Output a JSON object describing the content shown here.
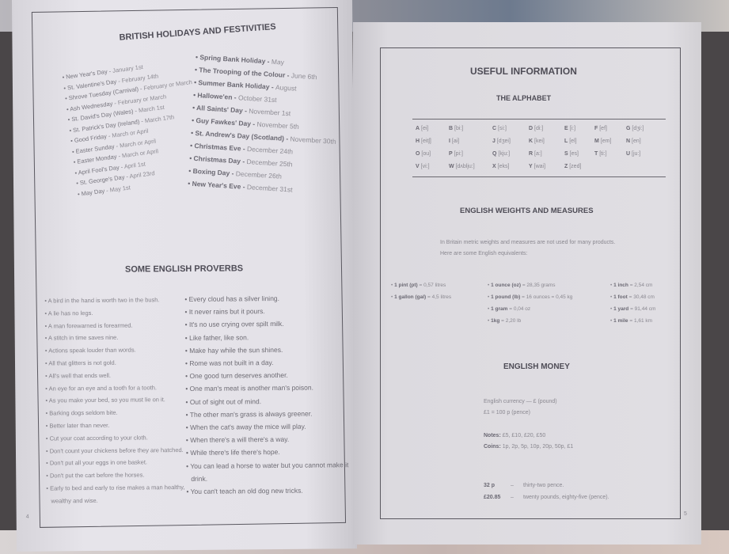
{
  "left_page": {
    "title": "BRITISH HOLIDAYS AND FESTIVITIES",
    "holidays_col1": [
      {
        "name": "New Year's Day",
        "date": "January 1st"
      },
      {
        "name": "St. Valentine's Day",
        "date": "February 14th"
      },
      {
        "name": "Shrove Tuesday (Carnival)",
        "date": "February or March"
      },
      {
        "name": "Ash Wednesday",
        "date": "February or March"
      },
      {
        "name": "St. David's Day (Wales)",
        "date": "March 1st"
      },
      {
        "name": "St. Patrick's Day (Ireland)",
        "date": "March 17th"
      },
      {
        "name": "Good Friday",
        "date": "March or April"
      },
      {
        "name": "Easter Sunday",
        "date": "March or April"
      },
      {
        "name": "Easter Monday",
        "date": "March or April"
      },
      {
        "name": "April Fool's Day",
        "date": "April 1st"
      },
      {
        "name": "St. George's Day",
        "date": "April 23rd"
      },
      {
        "name": "May Day",
        "date": "May 1st"
      }
    ],
    "holidays_col2": [
      {
        "name": "Spring Bank Holiday",
        "date": "May"
      },
      {
        "name": "The Trooping of the Colour",
        "date": "June 6th"
      },
      {
        "name": "Summer Bank Holiday",
        "date": "August"
      },
      {
        "name": "Hallowe'en",
        "date": "October 31st"
      },
      {
        "name": "All Saints' Day",
        "date": "November 1st"
      },
      {
        "name": "Guy Fawkes' Day",
        "date": "November 5th"
      },
      {
        "name": "St. Andrew's Day (Scotland)",
        "date": "November 30th"
      },
      {
        "name": "Christmas Eve",
        "date": "December 24th"
      },
      {
        "name": "Christmas Day",
        "date": "December 25th"
      },
      {
        "name": "Boxing Day",
        "date": "December 26th"
      },
      {
        "name": "New Year's Eve",
        "date": "December 31st"
      }
    ],
    "proverbs_title": "SOME ENGLISH PROVERBS",
    "proverbs_col1": [
      "A bird in the hand is worth two in the bush.",
      "A lie has no legs.",
      "A man forewarned is forearmed.",
      "A stitch in time saves nine.",
      "Actions speak louder than words.",
      "All that glitters is not gold.",
      "All's well that ends well.",
      "An eye for an eye and a tooth for a tooth.",
      "As you make your bed, so you must lie on it.",
      "Barking dogs seldom bite.",
      "Better later than never.",
      "Cut your coat according to your cloth.",
      "Don't count your chickens before they are hatched.",
      "Don't put all your eggs in one basket.",
      "Don't put the cart before the horses.",
      "Early to bed and early to rise makes a man healthy,",
      "wealthy and wise."
    ],
    "proverbs_col2": [
      "Every cloud has a silver lining.",
      "It never rains but it pours.",
      "It's no use crying over spilt milk.",
      "Like father, like son.",
      "Make hay while the sun shines.",
      "Rome was not built in a day.",
      "One good turn deserves another.",
      "One man's meat is another man's poison.",
      "Out of sight out of mind.",
      "The other man's grass is always greener.",
      "When the cat's away the mice will play.",
      "When there's a will there's a way.",
      "While there's life there's hope.",
      "You can lead a horse to water but you cannot make it",
      "drink.",
      "You can't teach an old dog new tricks."
    ],
    "page_number": "4"
  },
  "right_page": {
    "title": "USEFUL INFORMATION",
    "alphabet_title": "THE ALPHABET",
    "alphabet": [
      [
        [
          "A",
          "[ei]"
        ],
        [
          "B",
          "[bi:]"
        ],
        [
          "C",
          "[si:]"
        ],
        [
          "D",
          "[di:]"
        ],
        [
          "E",
          "[i:]"
        ],
        [
          "F",
          "[ef]"
        ],
        [
          "G",
          "[dʒi:]"
        ]
      ],
      [
        [
          "H",
          "[eitʃ]"
        ],
        [
          "I",
          "[ai]"
        ],
        [
          "J",
          "[dʒei]"
        ],
        [
          "K",
          "[kei]"
        ],
        [
          "L",
          "[el]"
        ],
        [
          "M",
          "[em]"
        ],
        [
          "N",
          "[en]"
        ]
      ],
      [
        [
          "O",
          "[ou]"
        ],
        [
          "P",
          "[pi:]"
        ],
        [
          "Q",
          "[kju:]"
        ],
        [
          "R",
          "[a:]"
        ],
        [
          "S",
          "[es]"
        ],
        [
          "T",
          "[ti:]"
        ],
        [
          "U",
          "[ju:]"
        ]
      ],
      [
        [
          "V",
          "[vi:]"
        ],
        [
          "W",
          "[dʌblju:]"
        ],
        [
          "X",
          "[eks]"
        ],
        [
          "Y",
          "[wai]"
        ],
        [
          "Z",
          "[zed]"
        ]
      ]
    ],
    "weights_title": "ENGLISH WEIGHTS AND MEASURES",
    "weights_intro": [
      "In Britain metric weights and measures are not used for many products.",
      "Here are some English equivalents:"
    ],
    "measures_col1": [
      {
        "unit": "1 pint (pt)",
        "value": "= 0,57 litres"
      },
      {
        "unit": "1 gallon (gal)",
        "value": "= 4,5 litres"
      }
    ],
    "measures_col2": [
      {
        "unit": "1 ounce (oz)",
        "value": "= 28,35 grams"
      },
      {
        "unit": "1 pound (lb)",
        "value": "= 16 ounces = 0,45 kg"
      },
      {
        "unit": "1 gram",
        "value": "= 0,04 oz"
      },
      {
        "unit": "1kg",
        "value": "= 2,20 lb"
      }
    ],
    "measures_col3": [
      {
        "unit": "1 inch",
        "value": "= 2,54 cm"
      },
      {
        "unit": "1 foot",
        "value": "= 30,48 cm"
      },
      {
        "unit": "1 yard",
        "value": "= 91,44 cm"
      },
      {
        "unit": "1 mile",
        "value": "= 1,61 km"
      }
    ],
    "money_title": "ENGLISH MONEY",
    "currency_line1": "English currency — £ (pound)",
    "currency_line2": "£1 = 100 p (pence)",
    "notes_label": "Notes:",
    "notes_value": "£5, £10, £20, £50",
    "coins_label": "Coins:",
    "coins_value": "1p, 2p, 5p, 10p, 20p, 50p, £1",
    "examples": [
      {
        "amount": "32 p",
        "dash": "–",
        "words": "thirty-two pence."
      },
      {
        "amount": "£20.85",
        "dash": "–",
        "words": "twenty pounds, eighty-five (pence)."
      }
    ],
    "page_number": "5"
  }
}
